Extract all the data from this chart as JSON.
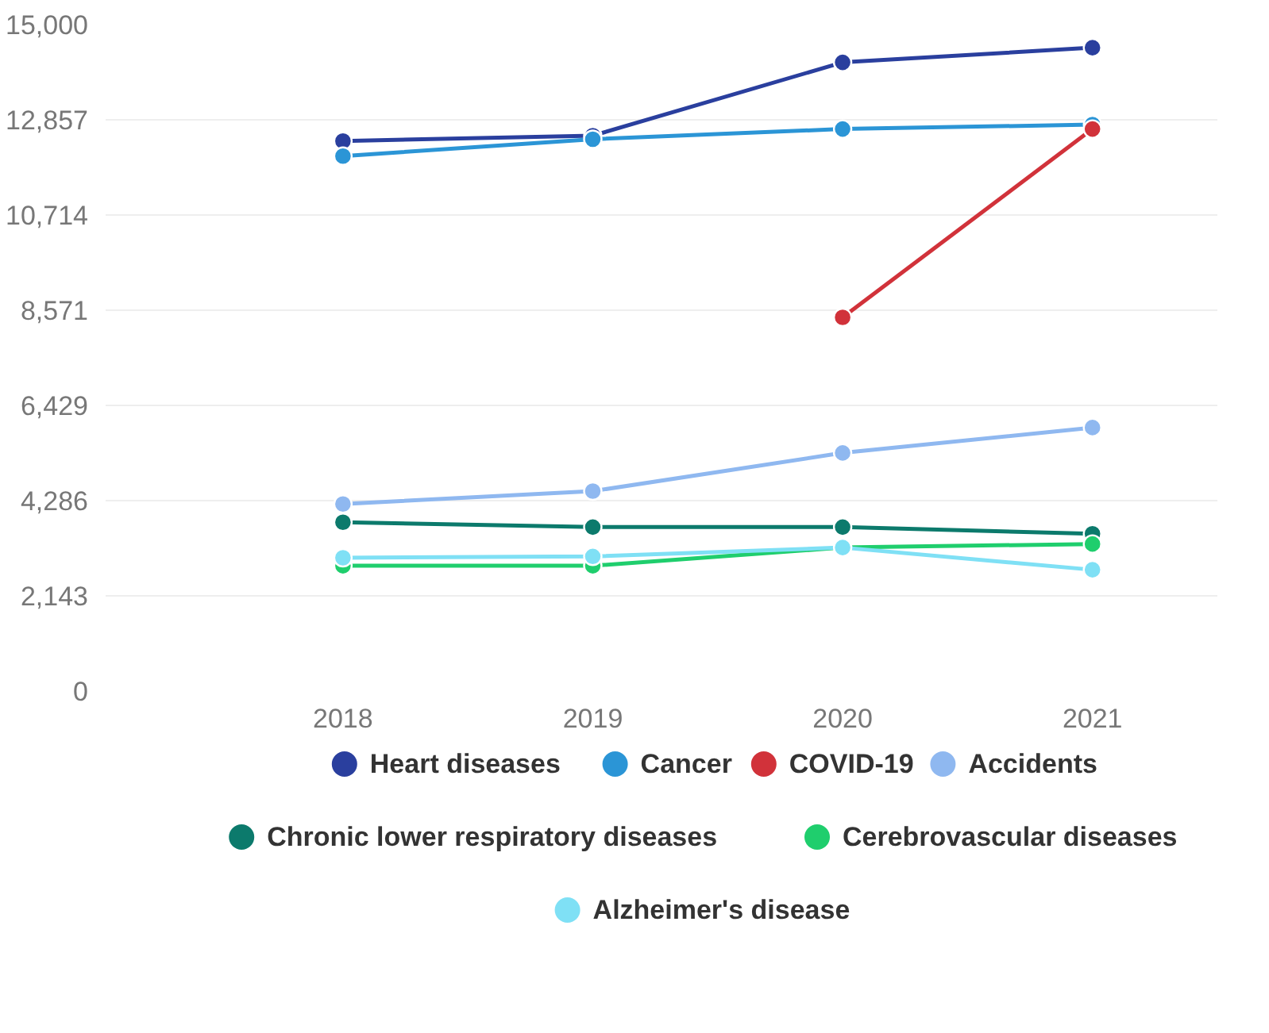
{
  "chart_data": {
    "type": "line",
    "categories": [
      "2018",
      "2019",
      "2020",
      "2021"
    ],
    "ylim": [
      0,
      15000
    ],
    "yticks": [
      0,
      {
        "value": 2143,
        "label": "2,143"
      },
      {
        "value": 4286,
        "label": "4,286"
      },
      {
        "value": 6429,
        "label": "6,429"
      },
      {
        "value": 8571,
        "label": "8,571"
      },
      {
        "value": 10714,
        "label": "10,714"
      },
      {
        "value": 12857,
        "label": "12,857"
      },
      {
        "value": 15000,
        "label": "15,000"
      }
    ],
    "grid": "y",
    "legend": "bottom",
    "marker": "circle",
    "line_style": "solid",
    "series": [
      {
        "name": "Heart diseases",
        "color": "#2a3f9e",
        "values": [
          12380,
          12500,
          14150,
          14480
        ]
      },
      {
        "name": "Cancer",
        "color": "#2b95d6",
        "values": [
          12040,
          12420,
          12650,
          12750
        ]
      },
      {
        "name": "COVID-19",
        "color": "#d1323a",
        "values": [
          null,
          null,
          8410,
          12650
        ]
      },
      {
        "name": "Accidents",
        "color": "#8fb8f0",
        "values": [
          4210,
          4500,
          5360,
          5930
        ]
      },
      {
        "name": "Chronic lower respiratory diseases",
        "color": "#0c7a6c",
        "values": [
          3800,
          3690,
          3690,
          3540
        ]
      },
      {
        "name": "Cerebrovascular diseases",
        "color": "#1fce6d",
        "values": [
          2820,
          2820,
          3230,
          3310
        ]
      },
      {
        "name": "Alzheimer's disease",
        "color": "#7fe0f5",
        "values": [
          3000,
          3030,
          3230,
          2730
        ]
      }
    ]
  }
}
